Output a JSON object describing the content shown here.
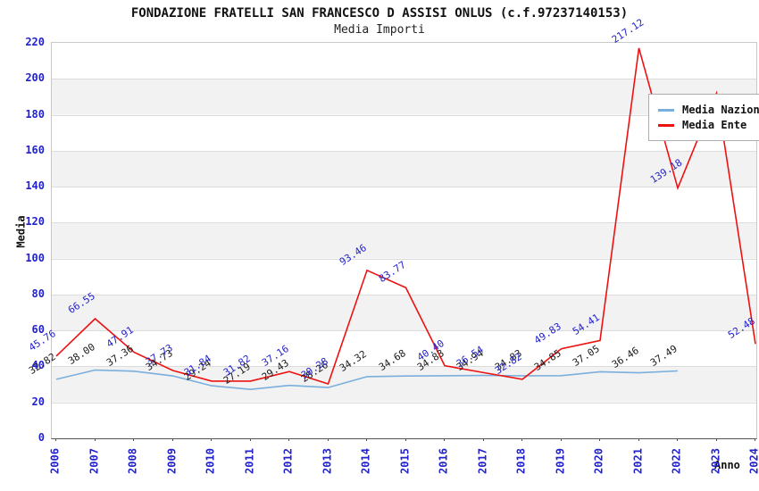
{
  "chart": {
    "title": "FONDAZIONE FRATELLI SAN FRANCESCO D ASSISI ONLUS (c.f.97237140153)",
    "subtitle": "Media Importi",
    "xlabel": "Anno",
    "ylabel": "Media"
  },
  "legend": {
    "items": [
      {
        "label": "Media Nazionale",
        "color": "#7aafdd"
      },
      {
        "label": "Media Ente",
        "color": "#ee1111"
      }
    ]
  },
  "chart_data": {
    "type": "line",
    "title": "FONDAZIONE FRATELLI SAN FRANCESCO D ASSISI ONLUS (c.f.97237140153)",
    "subtitle": "Media Importi",
    "xlabel": "Anno",
    "ylabel": "Media",
    "ylim": [
      0,
      220
    ],
    "ytick_step": 20,
    "grid": "horizontal",
    "legend_position": "top-right",
    "x": [
      "2006",
      "2007",
      "2008",
      "2009",
      "2010",
      "2011",
      "2012",
      "2013",
      "2014",
      "2015",
      "2016",
      "2017",
      "2018",
      "2019",
      "2020",
      "2021",
      "2022",
      "2023",
      "2024"
    ],
    "series": [
      {
        "name": "Media Nazionale",
        "color": "#7aafdd",
        "label_color": "#1a1a1a",
        "values": [
          32.82,
          38.0,
          37.36,
          34.73,
          29.24,
          27.19,
          29.43,
          28.26,
          34.32,
          34.68,
          34.83,
          34.94,
          34.83,
          34.85,
          37.05,
          36.46,
          37.49,
          null,
          null
        ],
        "labels": [
          "32.82",
          "38.00",
          "37.36",
          "34.73",
          "29.24",
          "27.19",
          "29.43",
          "28.26",
          "34.32",
          "34.68",
          "34.83",
          "34.94",
          "34.83",
          "34.85",
          "37.05",
          "36.46",
          "37.49",
          null,
          null
        ]
      },
      {
        "name": "Media Ente",
        "color": "#ee1111",
        "label_color": "#2222cc",
        "values": [
          45.76,
          66.55,
          47.91,
          37.73,
          31.84,
          31.82,
          37.16,
          30.28,
          93.46,
          83.77,
          40.4,
          36.54,
          32.82,
          49.83,
          54.41,
          217.12,
          139.18,
          192.0,
          52.48
        ],
        "labels": [
          "45.76",
          "66.55",
          "47.91",
          "37.73",
          "31.84",
          "31.82",
          "37.16",
          "30.28",
          "93.46",
          "83.77",
          "40.40",
          "36.54",
          "32.82",
          "49.83",
          "54.41",
          "217.12",
          "139.18",
          null,
          "52.48"
        ]
      }
    ]
  }
}
